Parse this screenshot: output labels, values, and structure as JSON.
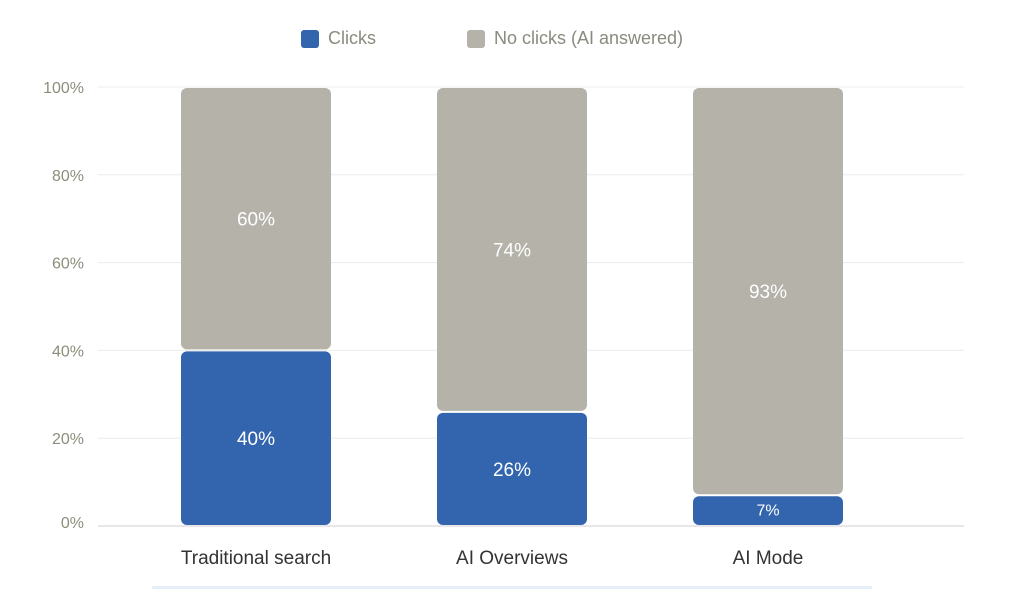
{
  "chart_data": {
    "type": "bar",
    "stacked": true,
    "normalized": true,
    "categories": [
      "Traditional search",
      "AI Overviews",
      "AI Mode"
    ],
    "series": [
      {
        "name": "Clicks",
        "values": [
          40,
          26,
          7
        ],
        "labels": [
          "40%",
          "26%",
          "7%"
        ],
        "color": "#3265ad"
      },
      {
        "name": "No clicks (AI answered)",
        "values": [
          60,
          74,
          93
        ],
        "labels": [
          "60%",
          "74%",
          "93%"
        ],
        "color": "#b4b2a9"
      }
    ],
    "ylim": [
      0,
      100
    ],
    "yticks": [
      {
        "value": 0,
        "label": "0%"
      },
      {
        "value": 20,
        "label": "20%"
      },
      {
        "value": 40,
        "label": "40%"
      },
      {
        "value": 60,
        "label": "60%"
      },
      {
        "value": 80,
        "label": "80%"
      },
      {
        "value": 100,
        "label": "100%"
      }
    ],
    "grid": true,
    "legend_position": "top-center",
    "colors": {
      "grid": "#ececec",
      "axis": "#cfcfcf",
      "tick_text": "#8a8f7a",
      "category_text": "#333333",
      "bar_label": "#ffffff"
    }
  }
}
